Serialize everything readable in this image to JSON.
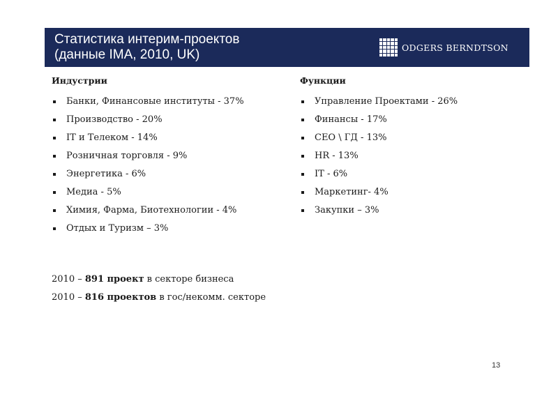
{
  "header": {
    "title_line1": "Статистика интерим-проектов",
    "title_line2": "(данные IMA, 2010, UK)",
    "logo_text": "ODGERS BERNDTSON",
    "background_color": "#1b2a5a"
  },
  "industries": {
    "heading": "Индустрии",
    "items": [
      "Банки, Финансовые институты  - 37%",
      "Производство - 20%",
      "IT и Телеком - 14%",
      "Розничная торговля - 9%",
      "Энергетика - 6%",
      "Медиа - 5%",
      "Химия, Фарма, Биотехнологии - 4%",
      "Отдых и Туризм – 3%"
    ]
  },
  "functions": {
    "heading": "Функции",
    "items": [
      "Управление Проектами - 26%",
      "Финансы - 17%",
      "CEO \\ ГД - 13%",
      "HR  - 13%",
      "IT - 6%",
      "Маркетинг- 4%",
      "Закупки – 3%"
    ]
  },
  "stats": {
    "line1_prefix": "2010 – ",
    "line1_bold": "891 проект",
    "line1_suffix": " в секторе бизнеса",
    "line2_prefix": "2010 – ",
    "line2_bold": "816 проектов",
    "line2_suffix": " в гос/некомм. секторе"
  },
  "page_number": "13"
}
